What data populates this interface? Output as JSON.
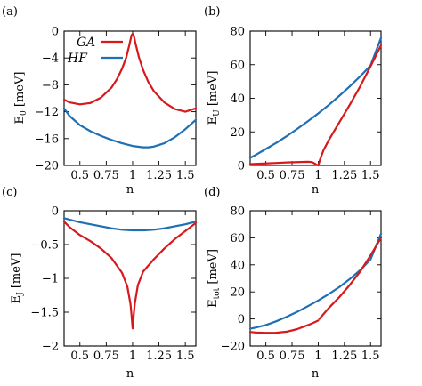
{
  "colors": {
    "GA": "#d7191c",
    "HF": "#1f6fb4"
  },
  "chart_data": [
    {
      "panel_label": "(a)",
      "type": "line",
      "xlabel": "n",
      "ylabel": "E_0 [meV]",
      "xlim": [
        0.35,
        1.6
      ],
      "ylim": [
        -20,
        0
      ],
      "xticks": [
        0.5,
        0.75,
        1,
        1.25,
        1.5
      ],
      "xtick_labels": [
        "0.5",
        "0.75",
        "1",
        "1.25",
        "1.5"
      ],
      "yticks": [
        0,
        -4,
        -8,
        -12,
        -16,
        -20
      ],
      "ytick_labels": [
        "0",
        "−4",
        "−8",
        "−12",
        "−16",
        "−20"
      ],
      "legend": {
        "placement": "top-left",
        "entries": [
          "GA",
          "HF"
        ]
      },
      "series": [
        {
          "name": "GA",
          "x": [
            0.35,
            0.4,
            0.5,
            0.6,
            0.7,
            0.8,
            0.85,
            0.9,
            0.94,
            0.97,
            0.99,
            1.0,
            1.01,
            1.03,
            1.06,
            1.1,
            1.15,
            1.2,
            1.3,
            1.4,
            1.5,
            1.6
          ],
          "y": [
            -10.2,
            -10.6,
            -10.9,
            -10.7,
            -9.9,
            -8.4,
            -7.2,
            -5.6,
            -3.9,
            -2.0,
            -0.6,
            -0.4,
            -0.6,
            -2.0,
            -3.9,
            -5.8,
            -7.6,
            -8.9,
            -10.6,
            -11.6,
            -12.0,
            -11.5
          ]
        },
        {
          "name": "HF",
          "x": [
            0.35,
            0.4,
            0.5,
            0.6,
            0.7,
            0.8,
            0.9,
            1.0,
            1.1,
            1.15,
            1.2,
            1.3,
            1.4,
            1.5,
            1.6
          ],
          "y": [
            -11.5,
            -12.6,
            -14.0,
            -14.9,
            -15.6,
            -16.2,
            -16.7,
            -17.1,
            -17.3,
            -17.3,
            -17.2,
            -16.7,
            -15.8,
            -14.6,
            -13.2
          ]
        }
      ]
    },
    {
      "panel_label": "(b)",
      "type": "line",
      "xlabel": "n",
      "ylabel": "E_U [meV]",
      "xlim": [
        0.35,
        1.6
      ],
      "ylim": [
        0,
        80
      ],
      "xticks": [
        0.5,
        0.75,
        1,
        1.25,
        1.5
      ],
      "xtick_labels": [
        "0.5",
        "0.75",
        "1",
        "1.25",
        "1.5"
      ],
      "yticks": [
        0,
        20,
        40,
        60,
        80
      ],
      "ytick_labels": [
        "0",
        "20",
        "40",
        "60",
        "80"
      ],
      "series": [
        {
          "name": "GA",
          "x": [
            0.35,
            0.5,
            0.6,
            0.7,
            0.8,
            0.9,
            0.93,
            0.95,
            0.97,
            0.99,
            1.0
          ],
          "y": [
            0.8,
            1.2,
            1.5,
            1.8,
            2.0,
            2.2,
            2.1,
            1.7,
            1.0,
            0.2,
            0.0
          ]
        },
        {
          "name": "GA",
          "x": [
            1.0,
            1.02,
            1.05,
            1.1,
            1.2,
            1.3,
            1.4,
            1.5,
            1.6
          ],
          "y": [
            0.0,
            4.0,
            9.0,
            15.0,
            25.5,
            36.0,
            47.0,
            59.0,
            71.5
          ]
        },
        {
          "name": "HF",
          "x": [
            0.35,
            0.4,
            0.5,
            0.6,
            0.7,
            0.8,
            0.9,
            1.0,
            1.1,
            1.2,
            1.3,
            1.4,
            1.5,
            1.6
          ],
          "y": [
            4.5,
            6.2,
            9.8,
            13.5,
            17.5,
            21.8,
            26.3,
            31.0,
            36.0,
            41.4,
            47.0,
            53.0,
            59.5,
            76.0
          ]
        }
      ]
    },
    {
      "panel_label": "(c)",
      "type": "line",
      "xlabel": "n",
      "ylabel": "E_J [meV]",
      "xlim": [
        0.35,
        1.6
      ],
      "ylim": [
        -2,
        0
      ],
      "xticks": [
        0.5,
        0.75,
        1,
        1.25,
        1.5
      ],
      "xtick_labels": [
        "0.5",
        "0.75",
        "1",
        "1.25",
        "1.5"
      ],
      "yticks": [
        0,
        -0.5,
        -1,
        -1.5,
        -2
      ],
      "ytick_labels": [
        "0",
        "−0.5",
        "−1",
        "−1.5",
        "−2"
      ],
      "series": [
        {
          "name": "GA",
          "x": [
            0.35,
            0.4,
            0.5,
            0.6,
            0.7,
            0.8,
            0.9,
            0.95,
            0.98,
            0.99,
            1.0,
            1.01,
            1.02,
            1.05,
            1.1,
            1.2,
            1.3,
            1.4,
            1.5,
            1.6
          ],
          "y": [
            -0.16,
            -0.24,
            -0.36,
            -0.45,
            -0.56,
            -0.7,
            -0.92,
            -1.12,
            -1.38,
            -1.55,
            -1.74,
            -1.55,
            -1.38,
            -1.1,
            -0.9,
            -0.72,
            -0.56,
            -0.42,
            -0.3,
            -0.18
          ]
        },
        {
          "name": "HF",
          "x": [
            0.35,
            0.4,
            0.5,
            0.6,
            0.7,
            0.8,
            0.9,
            1.0,
            1.1,
            1.2,
            1.3,
            1.4,
            1.5,
            1.6
          ],
          "y": [
            -0.11,
            -0.13,
            -0.17,
            -0.2,
            -0.23,
            -0.26,
            -0.28,
            -0.29,
            -0.29,
            -0.28,
            -0.26,
            -0.23,
            -0.2,
            -0.16
          ]
        }
      ]
    },
    {
      "panel_label": "(d)",
      "type": "line",
      "xlabel": "n",
      "ylabel": "E_tot [meV]",
      "xlim": [
        0.35,
        1.6
      ],
      "ylim": [
        -20,
        80
      ],
      "xticks": [
        0.5,
        0.75,
        1,
        1.25,
        1.5
      ],
      "xtick_labels": [
        "0.5",
        "0.75",
        "1",
        "1.25",
        "1.5"
      ],
      "yticks": [
        80,
        60,
        40,
        20,
        0,
        -20
      ],
      "ytick_labels": [
        "80",
        "60",
        "40",
        "20",
        "0",
        "−20"
      ],
      "series": [
        {
          "name": "GA",
          "x": [
            0.35,
            0.4,
            0.5,
            0.6,
            0.7,
            0.8,
            0.9,
            0.95,
            1.0
          ],
          "y": [
            -9.6,
            -10.0,
            -10.3,
            -10.2,
            -9.4,
            -7.5,
            -4.6,
            -3.0,
            -1.2
          ]
        },
        {
          "name": "GA",
          "x": [
            1.01,
            1.05,
            1.1,
            1.2,
            1.3,
            1.4,
            1.5,
            1.6
          ],
          "y": [
            0.0,
            3.5,
            8.0,
            16.0,
            25.0,
            35.0,
            47.0,
            60.0
          ]
        },
        {
          "name": "HF",
          "x": [
            0.35,
            0.4,
            0.5,
            0.6,
            0.7,
            0.8,
            0.9,
            1.0,
            1.1,
            1.2,
            1.3,
            1.4,
            1.5,
            1.6
          ],
          "y": [
            -7.2,
            -6.4,
            -4.5,
            -1.7,
            1.6,
            5.3,
            9.4,
            13.7,
            18.4,
            23.5,
            29.4,
            36.0,
            44.0,
            63.0
          ]
        }
      ]
    }
  ]
}
